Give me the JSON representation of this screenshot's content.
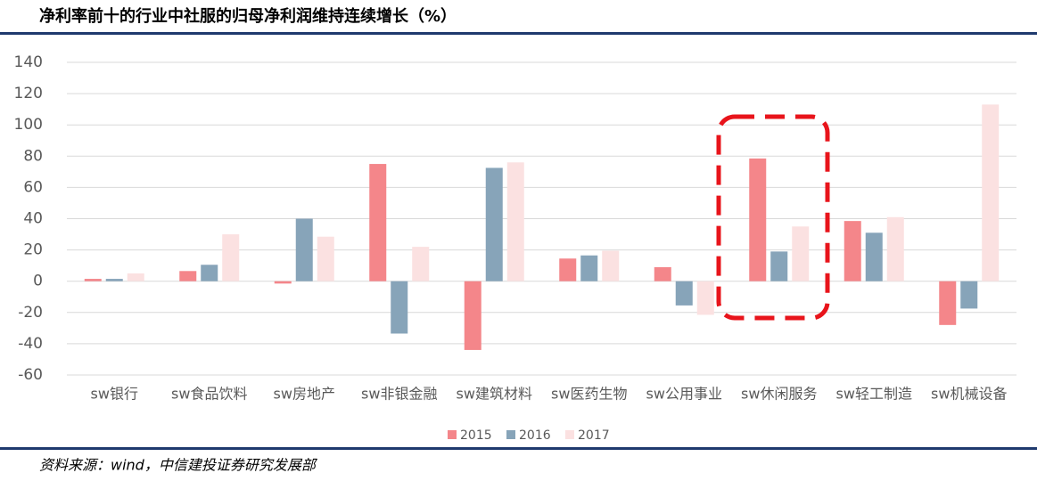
{
  "chart_data": {
    "type": "bar",
    "title": "净利率前十的行业中社服的归母净利润维持连续增长（%）",
    "source": "资料来源：wind，中信建投证券研究发展部",
    "categories": [
      "sw银行",
      "sw食品饮料",
      "sw房地产",
      "sw非银金融",
      "sw建筑材料",
      "sw医药生物",
      "sw公用事业",
      "sw休闲服务",
      "sw轻工制造",
      "sw机械设备"
    ],
    "series": [
      {
        "name": "2015",
        "color": "#f4868a",
        "values": [
          1.5,
          6.5,
          -1.5,
          75,
          -44,
          14.5,
          9,
          78.5,
          38.5,
          -28
        ]
      },
      {
        "name": "2016",
        "color": "#87a4b9",
        "values": [
          1.5,
          10.5,
          40,
          -33.5,
          72.5,
          16.5,
          -15.5,
          19,
          31,
          -17.5
        ]
      },
      {
        "name": "2017",
        "color": "#fbe1e1",
        "values": [
          5,
          30,
          28.5,
          22,
          76,
          19.5,
          -21.5,
          35,
          41,
          113
        ]
      }
    ],
    "ylim": [
      -60,
      140
    ],
    "yticks": [
      -60,
      -40,
      -20,
      0,
      20,
      40,
      60,
      80,
      100,
      120,
      140
    ],
    "grid": true,
    "legend": "bottom"
  }
}
